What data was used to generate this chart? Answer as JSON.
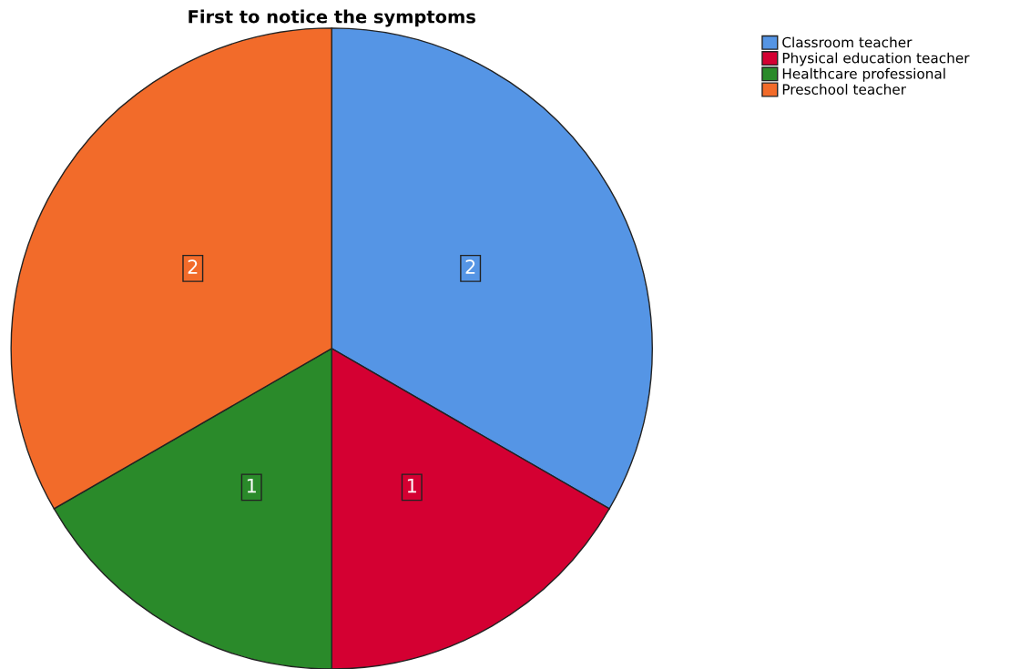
{
  "chart_data": {
    "type": "pie",
    "title": "First to notice the symptoms",
    "categories": [
      "Classroom teacher",
      "Physical education teacher",
      "Healthcare professional",
      "Preschool teacher"
    ],
    "values": [
      2,
      1,
      1,
      2
    ],
    "colors": [
      "#5595e5",
      "#d40032",
      "#2a8a2a",
      "#f26b2a"
    ],
    "data_labels": true,
    "legend": "top right"
  }
}
